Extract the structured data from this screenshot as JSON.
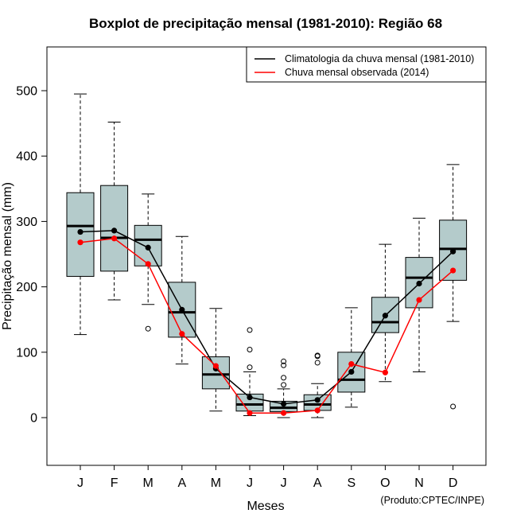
{
  "chart_data": {
    "type": "boxplot",
    "title": "Boxplot de precipitação mensal (1981-2010): Região 68",
    "xlabel": "Meses",
    "ylabel": "Precipitação mensal (mm)",
    "ylim": [
      -70,
      570
    ],
    "yticks": [
      0,
      100,
      200,
      300,
      400,
      500
    ],
    "categories": [
      "J",
      "F",
      "M",
      "A",
      "M",
      "J",
      "J",
      "A",
      "S",
      "O",
      "N",
      "D"
    ],
    "boxes": [
      {
        "whisker_low": 127,
        "q1": 216,
        "median": 293,
        "q3": 344,
        "whisker_high": 495,
        "outliers": []
      },
      {
        "whisker_low": 180,
        "q1": 224,
        "median": 275,
        "q3": 355,
        "whisker_high": 452,
        "outliers": []
      },
      {
        "whisker_low": 173,
        "q1": 232,
        "median": 272,
        "q3": 294,
        "whisker_high": 342,
        "outliers": [
          136
        ]
      },
      {
        "whisker_low": 82,
        "q1": 123,
        "median": 161,
        "q3": 207,
        "whisker_high": 277,
        "outliers": []
      },
      {
        "whisker_low": 10,
        "q1": 44,
        "median": 66,
        "q3": 93,
        "whisker_high": 167,
        "outliers": []
      },
      {
        "whisker_low": 3,
        "q1": 10,
        "median": 20,
        "q3": 36,
        "whisker_high": 70,
        "outliers": [
          77,
          104,
          134
        ]
      },
      {
        "whisker_low": 0,
        "q1": 9,
        "median": 15,
        "q3": 25,
        "whisker_high": 44,
        "outliers": [
          50,
          61,
          80,
          86
        ]
      },
      {
        "whisker_low": 0,
        "q1": 11,
        "median": 20,
        "q3": 35,
        "whisker_high": 52,
        "outliers": [
          84,
          94,
          95
        ]
      },
      {
        "whisker_low": 16,
        "q1": 39,
        "median": 58,
        "q3": 100,
        "whisker_high": 168,
        "outliers": []
      },
      {
        "whisker_low": 55,
        "q1": 130,
        "median": 146,
        "q3": 184,
        "whisker_high": 265,
        "outliers": []
      },
      {
        "whisker_low": 70,
        "q1": 168,
        "median": 214,
        "q3": 245,
        "whisker_high": 305,
        "outliers": []
      },
      {
        "whisker_low": 147,
        "q1": 210,
        "median": 258,
        "q3": 302,
        "whisker_high": 387,
        "outliers": [
          17
        ]
      }
    ],
    "series": [
      {
        "name": "Climatologia da chuva mensal (1981-2010)",
        "color": "#000000",
        "values": [
          284,
          286,
          260,
          165,
          75,
          31,
          21,
          27,
          70,
          156,
          205,
          254
        ]
      },
      {
        "name": "Chuva mensal observada (2014)",
        "color": "#ff0000",
        "values": [
          268,
          274,
          235,
          128,
          79,
          7,
          7,
          11,
          82,
          69,
          180,
          225
        ]
      }
    ],
    "legend_position": "top-right",
    "box_fill": "#b4cbcb",
    "credit": "(Produto:CPTEC/INPE)"
  }
}
